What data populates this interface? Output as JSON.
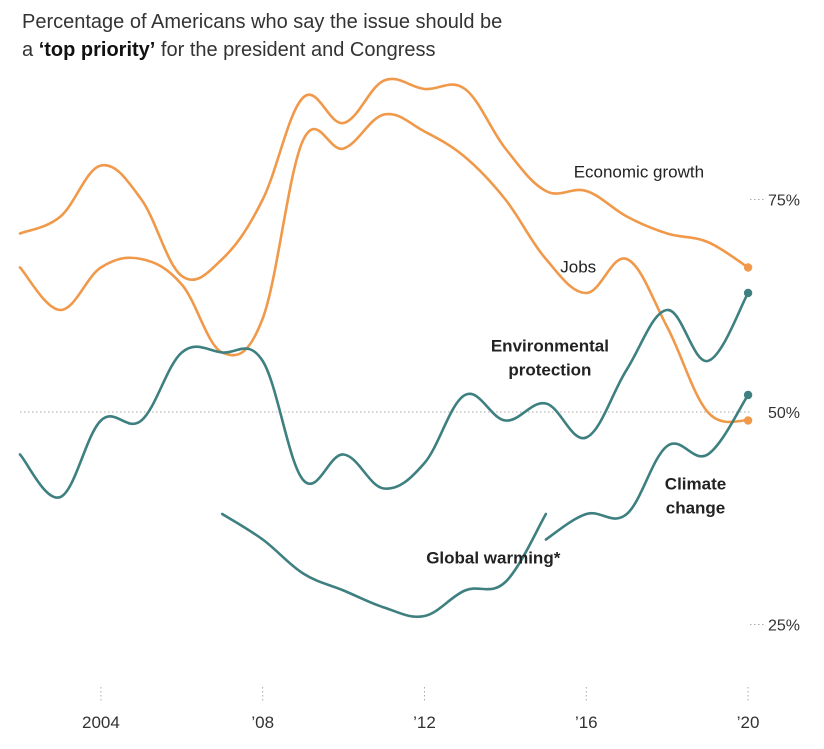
{
  "title": {
    "part1": "Percentage of Americans who say the issue should be",
    "part2_prefix": "a ",
    "part2_bold": "‘top priority’",
    "part2_suffix": " for the president and Congress"
  },
  "colors": {
    "economy": "#f0994a",
    "environment": "#3e7f80",
    "grid": "#aaaaaa",
    "text": "#333333"
  },
  "chart_data": {
    "type": "line",
    "xlim": [
      2002,
      2020.4
    ],
    "ylim": [
      17,
      85
    ],
    "x_ticks": [
      {
        "x": 2004,
        "label": "2004"
      },
      {
        "x": 2008,
        "label": "’08"
      },
      {
        "x": 2012,
        "label": "’12"
      },
      {
        "x": 2016,
        "label": "’16"
      },
      {
        "x": 2020,
        "label": "’20"
      }
    ],
    "y_ticks": [
      {
        "y": 75,
        "label": "75%"
      },
      {
        "y": 50,
        "label": "50%"
      },
      {
        "y": 25,
        "label": "25%"
      }
    ],
    "series": [
      {
        "key": "economic-growth",
        "name": "Economic growth",
        "color_key": "economy",
        "points": [
          [
            2002,
            71
          ],
          [
            2003,
            73
          ],
          [
            2004,
            79
          ],
          [
            2005,
            75
          ],
          [
            2006,
            66
          ],
          [
            2007,
            68
          ],
          [
            2008,
            75
          ],
          [
            2009,
            87
          ],
          [
            2010,
            84
          ],
          [
            2011,
            89
          ],
          [
            2012,
            88
          ],
          [
            2013,
            88
          ],
          [
            2014,
            81
          ],
          [
            2015,
            76
          ],
          [
            2016,
            76
          ],
          [
            2017,
            73
          ],
          [
            2018,
            71
          ],
          [
            2019,
            70
          ],
          [
            2020,
            67
          ]
        ],
        "label_point": [
          2017.3,
          77.6
        ],
        "label_anchor": "middle",
        "bold": false,
        "end_marker": true
      },
      {
        "key": "jobs",
        "name": "Jobs",
        "color_key": "economy",
        "points": [
          [
            2002,
            67
          ],
          [
            2003,
            62
          ],
          [
            2004,
            67
          ],
          [
            2005,
            68
          ],
          [
            2006,
            65
          ],
          [
            2007,
            57
          ],
          [
            2008,
            61
          ],
          [
            2009,
            82
          ],
          [
            2010,
            81
          ],
          [
            2011,
            85
          ],
          [
            2012,
            83
          ],
          [
            2013,
            80
          ],
          [
            2014,
            75
          ],
          [
            2015,
            68
          ],
          [
            2016,
            64
          ],
          [
            2017,
            68
          ],
          [
            2018,
            60
          ],
          [
            2019,
            50
          ],
          [
            2020,
            49
          ]
        ],
        "label_point": [
          2015.8,
          66.4
        ],
        "label_anchor": "middle",
        "bold": false,
        "end_marker": true
      },
      {
        "key": "environmental-protection",
        "name_lines": [
          "Environmental",
          "protection"
        ],
        "color_key": "environment",
        "points": [
          [
            2002,
            45
          ],
          [
            2003,
            40
          ],
          [
            2004,
            49
          ],
          [
            2005,
            49
          ],
          [
            2006,
            57
          ],
          [
            2007,
            57
          ],
          [
            2008,
            56
          ],
          [
            2009,
            42
          ],
          [
            2010,
            45
          ],
          [
            2011,
            41
          ],
          [
            2012,
            44
          ],
          [
            2013,
            52
          ],
          [
            2014,
            49
          ],
          [
            2015,
            51
          ],
          [
            2016,
            47
          ],
          [
            2017,
            55
          ],
          [
            2018,
            62
          ],
          [
            2019,
            56
          ],
          [
            2020,
            64
          ]
        ],
        "label_point": [
          2015.1,
          57.1
        ],
        "label_anchor": "middle",
        "bold": true,
        "end_marker": true
      },
      {
        "key": "global-warming",
        "name": "Global warming*",
        "color_key": "environment",
        "points": [
          [
            2007,
            38
          ],
          [
            2008,
            35
          ],
          [
            2009,
            31
          ],
          [
            2010,
            29
          ],
          [
            2011,
            27
          ],
          [
            2012,
            26
          ],
          [
            2013,
            29
          ],
          [
            2014,
            30
          ],
          [
            2015,
            38
          ]
        ],
        "label_point": [
          2013.7,
          32.2
        ],
        "label_anchor": "middle",
        "bold": true,
        "end_marker": false
      },
      {
        "key": "climate-change",
        "name_lines": [
          "Climate",
          "change"
        ],
        "color_key": "environment",
        "points": [
          [
            2015,
            35
          ],
          [
            2016,
            38
          ],
          [
            2017,
            38
          ],
          [
            2018,
            46
          ],
          [
            2019,
            45
          ],
          [
            2020,
            52
          ]
        ],
        "label_point": [
          2018.7,
          40.9
        ],
        "label_anchor": "middle",
        "bold": true,
        "end_marker": true
      }
    ]
  }
}
